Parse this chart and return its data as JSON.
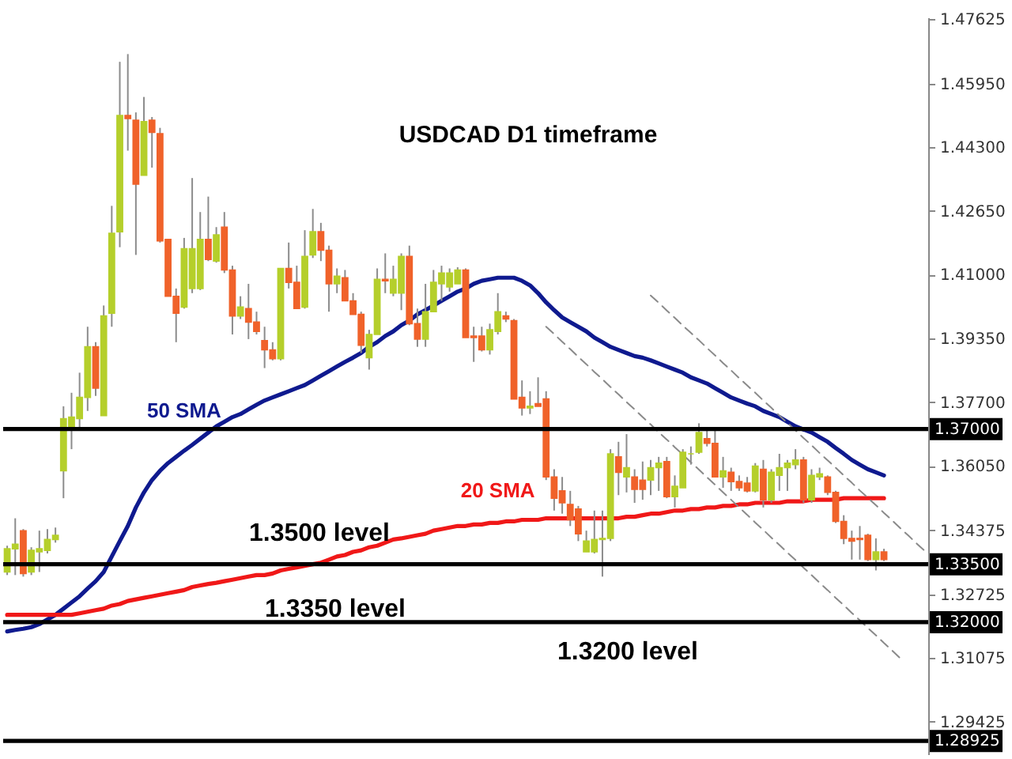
{
  "chart_data": {
    "type": "candlestick",
    "title": "USDCAD D1 timeframe",
    "categories": [
      null,
      null,
      null,
      null,
      null,
      null,
      null,
      null,
      null,
      null,
      null,
      null,
      null,
      null,
      null,
      null,
      null,
      null,
      null,
      null,
      null,
      null,
      null,
      null,
      null,
      null,
      null,
      null,
      null,
      null,
      null,
      null,
      null,
      null,
      null,
      null,
      null,
      null,
      null,
      null,
      null,
      null,
      null,
      null,
      null,
      null,
      null,
      null,
      null,
      null,
      null,
      null,
      null,
      null,
      null,
      null,
      null,
      null,
      null,
      null,
      null,
      null,
      null,
      null,
      null,
      null,
      null,
      null,
      null,
      null,
      null,
      null,
      null,
      null,
      null,
      null,
      null,
      null,
      null,
      null,
      null,
      null,
      null,
      null,
      null,
      null,
      null,
      null,
      null,
      null,
      null,
      null,
      null,
      null,
      null,
      null,
      null,
      null,
      null,
      null,
      null,
      null,
      null,
      null,
      null,
      null,
      null,
      null,
      null,
      null,
      null,
      null,
      null,
      null,
      null
    ],
    "ohlc": [
      [
        1.333,
        1.3398,
        1.3322,
        1.339
      ],
      [
        1.339,
        1.3469,
        1.3322,
        1.3402
      ],
      [
        1.3437,
        1.3441,
        1.3318,
        1.3326
      ],
      [
        1.333,
        1.3394,
        1.3322,
        1.3386
      ],
      [
        1.3382,
        1.3437,
        1.333,
        1.339
      ],
      [
        1.3386,
        1.3441,
        1.3378,
        1.3414
      ],
      [
        1.3414,
        1.3445,
        1.3406,
        1.3425
      ],
      [
        1.3592,
        1.3759,
        1.3521,
        1.3727
      ],
      [
        1.3699,
        1.3794,
        1.3648,
        1.3731
      ],
      [
        1.3727,
        1.3846,
        1.3703,
        1.3782
      ],
      [
        1.3782,
        1.3965,
        1.3747,
        1.3913
      ],
      [
        1.3913,
        1.3925,
        1.3786,
        1.3806
      ],
      [
        1.3735,
        1.402,
        1.3735,
        1.3993
      ],
      [
        1.4,
        1.4278,
        1.3965,
        1.4207
      ],
      [
        1.4211,
        1.4651,
        1.4171,
        1.4512
      ],
      [
        1.4512,
        1.4671,
        1.4421,
        1.4504
      ],
      [
        1.45,
        1.452,
        1.4151,
        1.4334
      ],
      [
        1.4357,
        1.456,
        1.4357,
        1.4496
      ],
      [
        1.45,
        1.4508,
        1.4377,
        1.4468
      ],
      [
        1.4465,
        1.448,
        1.4183,
        1.4187
      ],
      [
        1.4191,
        1.4191,
        1.4044,
        1.4044
      ],
      [
        1.4044,
        1.4064,
        1.3925,
        1.4
      ],
      [
        1.4016,
        1.4195,
        1.4012,
        1.4167
      ],
      [
        1.4064,
        1.435,
        1.4052,
        1.4167
      ],
      [
        1.4064,
        1.4262,
        1.406,
        1.4191
      ],
      [
        1.4191,
        1.4302,
        1.4135,
        1.4139
      ],
      [
        1.4135,
        1.4223,
        1.4131,
        1.4203
      ],
      [
        1.4223,
        1.4262,
        1.4104,
        1.4112
      ],
      [
        1.4112,
        1.4123,
        1.3945,
        1.3993
      ],
      [
        1.3993,
        1.4044,
        1.3985,
        1.4016
      ],
      [
        1.4012,
        1.4076,
        1.3933,
        1.3977
      ],
      [
        1.3977,
        1.4004,
        1.3945,
        1.3953
      ],
      [
        1.3929,
        1.3965,
        1.3858,
        1.3905
      ],
      [
        1.3905,
        1.3925,
        1.3878,
        1.3882
      ],
      [
        1.3882,
        1.4116,
        1.3878,
        1.4116
      ],
      [
        1.4116,
        1.4183,
        1.4064,
        1.408
      ],
      [
        1.408,
        1.4123,
        1.4012,
        1.4012
      ],
      [
        1.4016,
        1.4215,
        1.4012,
        1.4147
      ],
      [
        1.4151,
        1.427,
        1.4143,
        1.4211
      ],
      [
        1.4211,
        1.4234,
        1.4135,
        1.4163
      ],
      [
        1.4163,
        1.4175,
        1.4004,
        1.4076
      ],
      [
        1.4076,
        1.4116,
        1.4052,
        1.4096
      ],
      [
        1.4092,
        1.4112,
        1.4032,
        1.4032
      ],
      [
        1.4032,
        1.4052,
        1.3997,
        1.3997
      ],
      [
        1.3997,
        1.4004,
        1.3897,
        1.3917
      ],
      [
        1.3885,
        1.3957,
        1.3854,
        1.3945
      ],
      [
        1.3945,
        1.4116,
        1.3945,
        1.4088
      ],
      [
        1.4088,
        1.4155,
        1.4052,
        1.4084
      ],
      [
        1.4052,
        1.4123,
        1.4044,
        1.4088
      ],
      [
        1.4052,
        1.4155,
        1.4008,
        1.4147
      ],
      [
        1.4147,
        1.4175,
        1.3969,
        1.3973
      ],
      [
        1.3973,
        1.4012,
        1.3913,
        1.3933
      ],
      [
        1.3933,
        1.4076,
        1.3913,
        1.4004
      ],
      [
        1.4004,
        1.4112,
        1.4004,
        1.408
      ],
      [
        1.4076,
        1.4123,
        1.4032,
        1.4104
      ],
      [
        1.4068,
        1.4116,
        1.4056,
        1.4104
      ],
      [
        1.4076,
        1.4119,
        1.4076,
        1.4112
      ],
      [
        1.4112,
        1.4116,
        1.3937,
        1.3937
      ],
      [
        1.3941,
        1.3965,
        1.3874,
        1.3937
      ],
      [
        1.3941,
        1.3965,
        1.3901,
        1.3905
      ],
      [
        1.3905,
        1.3973,
        1.3893,
        1.3957
      ],
      [
        1.3953,
        1.4052,
        1.3945,
        1.4004
      ],
      [
        1.3993,
        1.4004,
        1.3977,
        1.3985
      ],
      [
        1.3981,
        1.3985,
        1.3778,
        1.3778
      ],
      [
        1.3782,
        1.3826,
        1.3735,
        1.3755
      ],
      [
        1.3755,
        1.3798,
        1.3739,
        1.3759
      ],
      [
        1.3766,
        1.3834,
        1.3759,
        1.3759
      ],
      [
        1.3778,
        1.3798,
        1.3568,
        1.3576
      ],
      [
        1.3576,
        1.3596,
        1.3489,
        1.3521
      ],
      [
        1.354,
        1.3576,
        1.3481,
        1.3509
      ],
      [
        1.3505,
        1.354,
        1.3449,
        1.3465
      ],
      [
        1.3493,
        1.3501,
        1.341,
        1.3429
      ],
      [
        1.3382,
        1.3437,
        1.3382,
        1.341
      ],
      [
        1.3382,
        1.3489,
        1.3378,
        1.3414
      ],
      [
        1.3414,
        1.3489,
        1.3318,
        1.3417
      ],
      [
        1.3417,
        1.3648,
        1.341,
        1.3636
      ],
      [
        1.3628,
        1.3667,
        1.3529,
        1.3588
      ],
      [
        1.3576,
        1.3687,
        1.3536,
        1.36
      ],
      [
        1.3576,
        1.3596,
        1.3509,
        1.3544
      ],
      [
        1.3568,
        1.3616,
        1.3517,
        1.3544
      ],
      [
        1.3568,
        1.362,
        1.3529,
        1.36
      ],
      [
        1.36,
        1.3628,
        1.354,
        1.3612
      ],
      [
        1.3616,
        1.3628,
        1.3521,
        1.3525
      ],
      [
        1.3525,
        1.358,
        1.3497,
        1.3552
      ],
      [
        1.3548,
        1.3648,
        1.3548,
        1.364
      ],
      [
        1.3636,
        1.3655,
        1.3608,
        1.3636
      ],
      [
        1.364,
        1.3715,
        1.3636,
        1.3691
      ],
      [
        1.3675,
        1.3699,
        1.3655,
        1.3663
      ],
      [
        1.3663,
        1.3699,
        1.3576,
        1.3576
      ],
      [
        1.3576,
        1.3628,
        1.3548,
        1.3592
      ],
      [
        1.3588,
        1.36,
        1.354,
        1.3564
      ],
      [
        1.3564,
        1.358,
        1.354,
        1.3548
      ],
      [
        1.356,
        1.3576,
        1.3536,
        1.354
      ],
      [
        1.354,
        1.3612,
        1.3536,
        1.3604
      ],
      [
        1.3596,
        1.362,
        1.3497,
        1.3517
      ],
      [
        1.3517,
        1.3596,
        1.3509,
        1.3588
      ],
      [
        1.358,
        1.3636,
        1.354,
        1.36
      ],
      [
        1.36,
        1.362,
        1.354,
        1.3612
      ],
      [
        1.3608,
        1.3648,
        1.3596,
        1.362
      ],
      [
        1.362,
        1.3628,
        1.3509,
        1.3517
      ],
      [
        1.3517,
        1.3596,
        1.3509,
        1.358
      ],
      [
        1.3576,
        1.36,
        1.3568,
        1.3584
      ],
      [
        1.3576,
        1.358,
        1.3529,
        1.3536
      ],
      [
        1.3536,
        1.354,
        1.3457,
        1.3461
      ],
      [
        1.3461,
        1.3477,
        1.3402,
        1.3417
      ],
      [
        1.3417,
        1.3437,
        1.3362,
        1.341
      ],
      [
        1.3417,
        1.3449,
        1.3362,
        1.3414
      ],
      [
        1.3425,
        1.3429,
        1.3358,
        1.3362
      ],
      [
        1.3362,
        1.3417,
        1.3334,
        1.3382
      ],
      [
        1.3382,
        1.339,
        1.3358,
        1.3362
      ],
      null,
      null,
      null,
      null,
      null
    ],
    "colors": [
      "#b5cf2b",
      "#b5cf2b",
      "#f0622a",
      "#b5cf2b",
      "#b5cf2b",
      "#b5cf2b",
      "#b5cf2b",
      "#b5cf2b",
      "#b5cf2b",
      "#b5cf2b",
      "#b5cf2b",
      "#f0622a",
      "#b5cf2b",
      "#b5cf2b",
      "#b5cf2b",
      "#f0622a",
      "#f0622a",
      "#b5cf2b",
      "#f0622a",
      "#f0622a",
      "#f0622a",
      "#f0622a",
      "#b5cf2b",
      "#b5cf2b",
      "#b5cf2b",
      "#f0622a",
      "#b5cf2b",
      "#f0622a",
      "#f0622a",
      "#b5cf2b",
      "#f0622a",
      "#f0622a",
      "#f0622a",
      "#f0622a",
      "#b5cf2b",
      "#f0622a",
      "#f0622a",
      "#b5cf2b",
      "#b5cf2b",
      "#f0622a",
      "#f0622a",
      "#b5cf2b",
      "#f0622a",
      "#f0622a",
      "#f0622a",
      "#b5cf2b",
      "#b5cf2b",
      "#f0622a",
      "#b5cf2b",
      "#b5cf2b",
      "#f0622a",
      "#f0622a",
      "#b5cf2b",
      "#b5cf2b",
      "#b5cf2b",
      "#b5cf2b",
      "#b5cf2b",
      "#f0622a",
      "#f0622a",
      "#f0622a",
      "#b5cf2b",
      "#b5cf2b",
      "#f0622a",
      "#f0622a",
      "#f0622a",
      "#b5cf2b",
      "#f0622a",
      "#f0622a",
      "#f0622a",
      "#f0622a",
      "#f0622a",
      "#f0622a",
      "#b5cf2b",
      "#b5cf2b",
      "#b5cf2b",
      "#b5cf2b",
      "#f0622a",
      "#b5cf2b",
      "#f0622a",
      "#f0622a",
      "#b5cf2b",
      "#b5cf2b",
      "#f0622a",
      "#b5cf2b",
      "#b5cf2b",
      "#b5cf2b",
      "#b5cf2b",
      "#f0622a",
      "#f0622a",
      "#b5cf2b",
      "#f0622a",
      "#f0622a",
      "#f0622a",
      "#b5cf2b",
      "#f0622a",
      "#b5cf2b",
      "#b5cf2b",
      "#b5cf2b",
      "#b5cf2b",
      "#f0622a",
      "#b5cf2b",
      "#b5cf2b",
      "#f0622a",
      "#f0622a",
      "#f0622a",
      "#f0622a",
      "#f0622a",
      "#f0622a",
      "#b5cf2b",
      "#f0622a",
      null,
      null,
      null,
      null,
      null
    ],
    "series": [
      {
        "name": "50 SMA",
        "type": "line",
        "color": "#0f1a8f",
        "values": [
          1.3176,
          1.318,
          1.3183,
          1.3187,
          1.3195,
          1.3207,
          1.3219,
          1.3235,
          1.3251,
          1.3267,
          1.3287,
          1.3306,
          1.333,
          1.337,
          1.341,
          1.3449,
          1.3497,
          1.3536,
          1.3568,
          1.3592,
          1.3612,
          1.3628,
          1.3644,
          1.3659,
          1.3675,
          1.3691,
          1.3707,
          1.3719,
          1.3731,
          1.3739,
          1.3751,
          1.3763,
          1.3774,
          1.3782,
          1.379,
          1.3798,
          1.3806,
          1.3814,
          1.3826,
          1.3838,
          1.385,
          1.3862,
          1.3874,
          1.3885,
          1.3897,
          1.3913,
          1.3925,
          1.3941,
          1.3953,
          1.3969,
          1.3981,
          1.3997,
          1.4008,
          1.402,
          1.4032,
          1.4044,
          1.4056,
          1.4064,
          1.4076,
          1.4084,
          1.4088,
          1.4092,
          1.4092,
          1.4092,
          1.4084,
          1.4072,
          1.4052,
          1.4028,
          1.4008,
          1.3989,
          1.3977,
          1.3965,
          1.3953,
          1.3937,
          1.3925,
          1.3913,
          1.3905,
          1.3897,
          1.3889,
          1.3885,
          1.3878,
          1.387,
          1.3862,
          1.3854,
          1.3846,
          1.3834,
          1.3826,
          1.3818,
          1.3806,
          1.3794,
          1.3782,
          1.3774,
          1.3766,
          1.3759,
          1.3747,
          1.3739,
          1.3731,
          1.3719,
          1.3707,
          1.3699,
          1.3691,
          1.3679,
          1.3667,
          1.3651,
          1.3636,
          1.362,
          1.3608,
          1.3596,
          1.3588,
          1.358,
          null,
          null,
          null,
          null,
          null
        ]
      },
      {
        "name": "20 SMA",
        "type": "line",
        "color": "#f01818",
        "values": [
          1.3219,
          1.3219,
          1.3219,
          1.3219,
          1.3219,
          1.3219,
          1.3219,
          1.3219,
          1.3219,
          1.3223,
          1.3227,
          1.3231,
          1.3235,
          1.3243,
          1.3247,
          1.3255,
          1.3259,
          1.3263,
          1.3267,
          1.3271,
          1.3275,
          1.3279,
          1.3283,
          1.3291,
          1.3295,
          1.3299,
          1.3302,
          1.3306,
          1.331,
          1.3314,
          1.3318,
          1.3322,
          1.3322,
          1.3326,
          1.3334,
          1.3338,
          1.3342,
          1.3346,
          1.335,
          1.3354,
          1.3362,
          1.337,
          1.3374,
          1.3382,
          1.3386,
          1.3394,
          1.3398,
          1.3406,
          1.3414,
          1.3417,
          1.3421,
          1.3425,
          1.3429,
          1.3437,
          1.3441,
          1.3445,
          1.3449,
          1.3449,
          1.3453,
          1.3453,
          1.3457,
          1.3457,
          1.3461,
          1.3461,
          1.3465,
          1.3465,
          1.3465,
          1.3469,
          1.3469,
          1.3469,
          1.3469,
          1.3469,
          1.3469,
          1.3469,
          1.3469,
          1.3469,
          1.3469,
          1.3473,
          1.3473,
          1.3477,
          1.3481,
          1.3481,
          1.3485,
          1.3489,
          1.3489,
          1.3493,
          1.3493,
          1.3497,
          1.3497,
          1.3501,
          1.3501,
          1.3505,
          1.3505,
          1.3509,
          1.3509,
          1.3509,
          1.3509,
          1.3513,
          1.3513,
          1.3513,
          1.3517,
          1.3517,
          1.3517,
          1.3517,
          1.3521,
          1.3521,
          1.3521,
          1.3521,
          1.3521,
          1.3521,
          null,
          null,
          null,
          null,
          null
        ]
      },
      {
        "type": "line",
        "color": "#8a8a8a",
        "line_style": "dashed",
        "values": [
          null,
          null,
          null,
          null,
          null,
          null,
          null,
          null,
          null,
          null,
          null,
          null,
          null,
          null,
          null,
          null,
          null,
          null,
          null,
          null,
          null,
          null,
          null,
          null,
          null,
          null,
          null,
          null,
          null,
          null,
          null,
          null,
          null,
          null,
          null,
          null,
          null,
          null,
          null,
          null,
          null,
          null,
          null,
          null,
          null,
          null,
          null,
          null,
          null,
          null,
          null,
          null,
          null,
          null,
          null,
          null,
          null,
          null,
          null,
          null,
          null,
          null,
          null,
          null,
          null,
          null,
          null,
          null,
          null,
          null,
          null,
          null,
          null,
          null,
          null,
          null,
          null,
          null,
          null,
          null,
          1.4046,
          1.4027,
          1.4007,
          1.3988,
          1.3968,
          1.3949,
          1.393,
          1.391,
          1.3891,
          1.3871,
          1.3852,
          1.3832,
          1.3813,
          1.3794,
          1.3774,
          1.3755,
          1.3735,
          1.3716,
          1.3697,
          1.3677,
          1.3658,
          1.3638,
          1.3619,
          1.36,
          1.358,
          1.3561,
          1.3541,
          1.3522,
          1.3503,
          1.3483,
          1.3464,
          1.3444,
          1.3425,
          1.3405,
          1.3386
        ]
      },
      {
        "type": "line",
        "color": "#8a8a8a",
        "line_style": "dashed",
        "values": [
          null,
          null,
          null,
          null,
          null,
          null,
          null,
          null,
          null,
          null,
          null,
          null,
          null,
          null,
          null,
          null,
          null,
          null,
          null,
          null,
          null,
          null,
          null,
          null,
          null,
          null,
          null,
          null,
          null,
          null,
          null,
          null,
          null,
          null,
          null,
          null,
          null,
          null,
          null,
          null,
          null,
          null,
          null,
          null,
          null,
          null,
          null,
          null,
          null,
          null,
          null,
          null,
          null,
          null,
          null,
          null,
          null,
          null,
          null,
          null,
          null,
          null,
          null,
          null,
          null,
          null,
          null,
          1.3965,
          1.3946,
          1.3926,
          1.3907,
          1.3887,
          1.3868,
          1.3848,
          1.3829,
          1.3809,
          1.379,
          1.377,
          1.3751,
          1.3731,
          1.3712,
          1.3692,
          1.3673,
          1.3653,
          1.3634,
          1.3614,
          1.3595,
          1.3575,
          1.3556,
          1.3536,
          1.3517,
          1.3497,
          1.3478,
          1.3458,
          1.3439,
          1.3419,
          1.34,
          1.338,
          1.3361,
          1.3341,
          1.3322,
          1.3302,
          1.3283,
          1.3263,
          1.3244,
          1.3224,
          1.3205,
          1.3185,
          1.3166,
          1.3146,
          1.3127,
          1.3107,
          null,
          null,
          null
        ]
      }
    ],
    "ylim": [
      1.2858,
      1.4766
    ],
    "yticks": [
      {
        "value": 1.47625,
        "label": "1.47625"
      },
      {
        "value": 1.4595,
        "label": "1.45950"
      },
      {
        "value": 1.443,
        "label": "1.44300"
      },
      {
        "value": 1.4265,
        "label": "1.42650"
      },
      {
        "value": 1.41,
        "label": "1.41000"
      },
      {
        "value": 1.3935,
        "label": "1.39350"
      },
      {
        "value": 1.377,
        "label": "1.37700"
      },
      {
        "value": 1.3605,
        "label": "1.36050"
      },
      {
        "value": 1.34375,
        "label": "1.34375"
      },
      {
        "value": 1.32725,
        "label": "1.32725"
      },
      {
        "value": 1.31075,
        "label": "1.31075"
      },
      {
        "value": 1.29425,
        "label": "1.29425"
      }
    ],
    "ref_lines": [
      {
        "axis": "y",
        "value": 1.37,
        "label": "1.37000"
      },
      {
        "axis": "y",
        "value": 1.335,
        "label": "1.33500"
      },
      {
        "axis": "y",
        "value": 1.32,
        "label": "1.32000"
      },
      {
        "axis": "y",
        "value": 1.28925,
        "label": "1.28925"
      }
    ],
    "annotations": [
      "1.3500 level",
      "1.3350 level",
      "1.3200 level"
    ],
    "tick_labels": "y"
  }
}
